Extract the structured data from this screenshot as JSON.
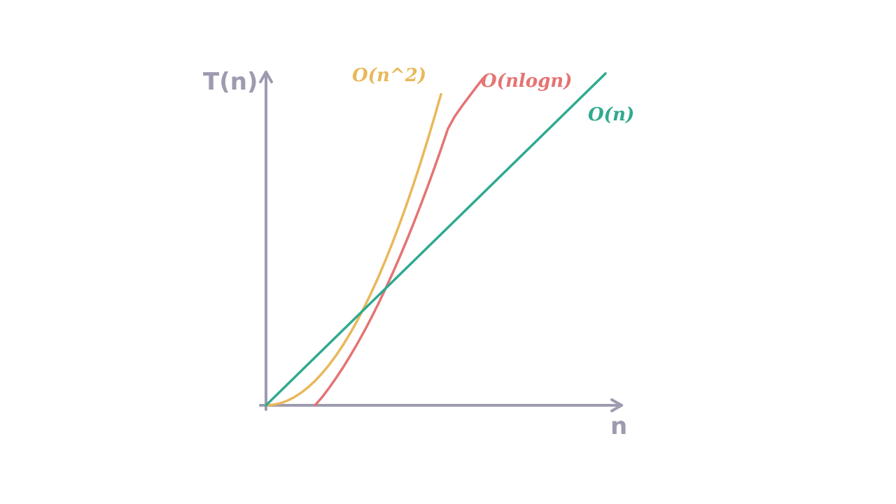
{
  "chart_data": {
    "type": "line",
    "title": "",
    "xlabel": "n",
    "ylabel": "T(n)",
    "grid": false,
    "legend": "labels-at-line-ends",
    "series": [
      {
        "name": "O(n^2)",
        "color": "#e8b85a",
        "x": [
          0,
          1,
          2,
          3,
          4,
          5,
          6,
          7,
          8,
          9,
          10,
          11,
          12,
          13,
          14,
          15,
          16,
          17,
          18,
          19,
          20,
          21,
          22,
          23,
          24,
          25
        ],
        "y": [
          0,
          1.5,
          6,
          13.5,
          24,
          37.5,
          54,
          73.5,
          96,
          121.5,
          150,
          181.5,
          216,
          253.5,
          294,
          337.5,
          384,
          433.5,
          486,
          541.5,
          600,
          661.5,
          726,
          793.5,
          864,
          937.5
        ]
      },
      {
        "name": "O(nlogn)",
        "color": "#e57373",
        "x": [
          7,
          8,
          9,
          10,
          11,
          12,
          13,
          14,
          15,
          16,
          17,
          18,
          19,
          20,
          21,
          22,
          23,
          24,
          25,
          26,
          27,
          28,
          29,
          30,
          31
        ],
        "y": [
          0,
          24,
          52,
          82,
          114,
          148,
          184,
          222,
          262,
          304,
          348,
          394,
          442,
          492,
          544,
          598,
          654,
          712,
          772,
          834,
          872,
          902,
          930,
          958,
          985
        ]
      },
      {
        "name": "O(n)",
        "color": "#2fa98f",
        "x": [
          0,
          48.5
        ],
        "y": [
          0,
          1000
        ]
      }
    ],
    "xlim": [
      0,
      50
    ],
    "ylim": [
      0,
      1000
    ]
  }
}
